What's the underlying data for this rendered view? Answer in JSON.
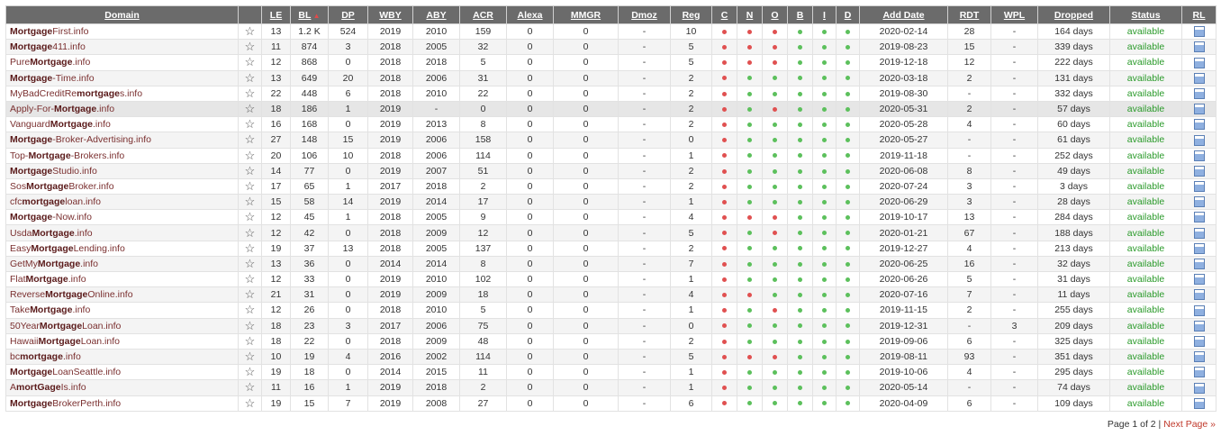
{
  "colors": {
    "red_dot": "#e05050",
    "green_dot": "#5cc05c",
    "available": "#2a9a2a",
    "header_bg": "#6b6b6b"
  },
  "icons": {
    "favorite": "star-outline-icon",
    "rl": "report-icon"
  },
  "columns": [
    "Domain",
    "",
    "LE",
    "BL",
    "DP",
    "WBY",
    "ABY",
    "ACR",
    "Alexa",
    "MMGR",
    "Dmoz",
    "Reg",
    "C",
    "N",
    "O",
    "B",
    "I",
    "D",
    "Add Date",
    "RDT",
    "WPL",
    "Dropped",
    "Status",
    "RL"
  ],
  "sorted_column": "BL",
  "rows": [
    {
      "pre": "",
      "bold": "Mortgage",
      "post": "First.info",
      "le": "13",
      "bl": "1.2 K",
      "dp": "524",
      "wby": "2019",
      "aby": "2010",
      "acr": "159",
      "alexa": "0",
      "mmgr": "0",
      "dmoz": "-",
      "reg": "10",
      "c": "r",
      "n": "r",
      "o": "r",
      "b": "g",
      "i": "g",
      "d": "g",
      "add": "2020-02-14",
      "rdt": "28",
      "wpl": "-",
      "dropped": "164 days",
      "status": "available"
    },
    {
      "pre": "",
      "bold": "Mortgage",
      "post": "411.info",
      "le": "11",
      "bl": "874",
      "dp": "3",
      "wby": "2018",
      "aby": "2005",
      "acr": "32",
      "alexa": "0",
      "mmgr": "0",
      "dmoz": "-",
      "reg": "5",
      "c": "r",
      "n": "r",
      "o": "r",
      "b": "g",
      "i": "g",
      "d": "g",
      "add": "2019-08-23",
      "rdt": "15",
      "wpl": "-",
      "dropped": "339 days",
      "status": "available"
    },
    {
      "pre": "Pure",
      "bold": "Mortgage",
      "post": ".info",
      "le": "12",
      "bl": "868",
      "dp": "0",
      "wby": "2018",
      "aby": "2018",
      "acr": "5",
      "alexa": "0",
      "mmgr": "0",
      "dmoz": "-",
      "reg": "5",
      "c": "r",
      "n": "r",
      "o": "r",
      "b": "g",
      "i": "g",
      "d": "g",
      "add": "2019-12-18",
      "rdt": "12",
      "wpl": "-",
      "dropped": "222 days",
      "status": "available"
    },
    {
      "pre": "",
      "bold": "Mortgage",
      "post": "-Time.info",
      "le": "13",
      "bl": "649",
      "dp": "20",
      "wby": "2018",
      "aby": "2006",
      "acr": "31",
      "alexa": "0",
      "mmgr": "0",
      "dmoz": "-",
      "reg": "2",
      "c": "r",
      "n": "g",
      "o": "g",
      "b": "g",
      "i": "g",
      "d": "g",
      "add": "2020-03-18",
      "rdt": "2",
      "wpl": "-",
      "dropped": "131 days",
      "status": "available"
    },
    {
      "pre": "MyBadCreditRe",
      "bold": "mortgage",
      "post": "s.info",
      "le": "22",
      "bl": "448",
      "dp": "6",
      "wby": "2018",
      "aby": "2010",
      "acr": "22",
      "alexa": "0",
      "mmgr": "0",
      "dmoz": "-",
      "reg": "2",
      "c": "r",
      "n": "g",
      "o": "g",
      "b": "g",
      "i": "g",
      "d": "g",
      "add": "2019-08-30",
      "rdt": "-",
      "wpl": "-",
      "dropped": "332 days",
      "status": "available"
    },
    {
      "pre": "Apply-For-",
      "bold": "Mortgage",
      "post": ".info",
      "le": "18",
      "bl": "186",
      "dp": "1",
      "wby": "2019",
      "aby": "-",
      "acr": "0",
      "alexa": "0",
      "mmgr": "0",
      "dmoz": "-",
      "reg": "2",
      "c": "r",
      "n": "g",
      "o": "r",
      "b": "g",
      "i": "g",
      "d": "g",
      "add": "2020-05-31",
      "rdt": "2",
      "wpl": "-",
      "dropped": "57 days",
      "status": "available"
    },
    {
      "pre": "Vanguard",
      "bold": "Mortgage",
      "post": ".info",
      "le": "16",
      "bl": "168",
      "dp": "0",
      "wby": "2019",
      "aby": "2013",
      "acr": "8",
      "alexa": "0",
      "mmgr": "0",
      "dmoz": "-",
      "reg": "2",
      "c": "r",
      "n": "g",
      "o": "g",
      "b": "g",
      "i": "g",
      "d": "g",
      "add": "2020-05-28",
      "rdt": "4",
      "wpl": "-",
      "dropped": "60 days",
      "status": "available"
    },
    {
      "pre": "",
      "bold": "Mortgage",
      "post": "-Broker-Advertising.info",
      "le": "27",
      "bl": "148",
      "dp": "15",
      "wby": "2019",
      "aby": "2006",
      "acr": "158",
      "alexa": "0",
      "mmgr": "0",
      "dmoz": "-",
      "reg": "0",
      "c": "r",
      "n": "g",
      "o": "g",
      "b": "g",
      "i": "g",
      "d": "g",
      "add": "2020-05-27",
      "rdt": "-",
      "wpl": "-",
      "dropped": "61 days",
      "status": "available"
    },
    {
      "pre": "Top-",
      "bold": "Mortgage",
      "post": "-Brokers.info",
      "le": "20",
      "bl": "106",
      "dp": "10",
      "wby": "2018",
      "aby": "2006",
      "acr": "114",
      "alexa": "0",
      "mmgr": "0",
      "dmoz": "-",
      "reg": "1",
      "c": "r",
      "n": "g",
      "o": "g",
      "b": "g",
      "i": "g",
      "d": "g",
      "add": "2019-11-18",
      "rdt": "-",
      "wpl": "-",
      "dropped": "252 days",
      "status": "available"
    },
    {
      "pre": "",
      "bold": "Mortgage",
      "post": "Studio.info",
      "le": "14",
      "bl": "77",
      "dp": "0",
      "wby": "2019",
      "aby": "2007",
      "acr": "51",
      "alexa": "0",
      "mmgr": "0",
      "dmoz": "-",
      "reg": "2",
      "c": "r",
      "n": "g",
      "o": "g",
      "b": "g",
      "i": "g",
      "d": "g",
      "add": "2020-06-08",
      "rdt": "8",
      "wpl": "-",
      "dropped": "49 days",
      "status": "available"
    },
    {
      "pre": "Sos",
      "bold": "Mortgage",
      "post": "Broker.info",
      "le": "17",
      "bl": "65",
      "dp": "1",
      "wby": "2017",
      "aby": "2018",
      "acr": "2",
      "alexa": "0",
      "mmgr": "0",
      "dmoz": "-",
      "reg": "2",
      "c": "r",
      "n": "g",
      "o": "g",
      "b": "g",
      "i": "g",
      "d": "g",
      "add": "2020-07-24",
      "rdt": "3",
      "wpl": "-",
      "dropped": "3 days",
      "status": "available"
    },
    {
      "pre": "cfc",
      "bold": "mortgage",
      "post": "loan.info",
      "le": "15",
      "bl": "58",
      "dp": "14",
      "wby": "2019",
      "aby": "2014",
      "acr": "17",
      "alexa": "0",
      "mmgr": "0",
      "dmoz": "-",
      "reg": "1",
      "c": "r",
      "n": "g",
      "o": "g",
      "b": "g",
      "i": "g",
      "d": "g",
      "add": "2020-06-29",
      "rdt": "3",
      "wpl": "-",
      "dropped": "28 days",
      "status": "available"
    },
    {
      "pre": "",
      "bold": "Mortgage",
      "post": "-Now.info",
      "le": "12",
      "bl": "45",
      "dp": "1",
      "wby": "2018",
      "aby": "2005",
      "acr": "9",
      "alexa": "0",
      "mmgr": "0",
      "dmoz": "-",
      "reg": "4",
      "c": "r",
      "n": "r",
      "o": "r",
      "b": "g",
      "i": "g",
      "d": "g",
      "add": "2019-10-17",
      "rdt": "13",
      "wpl": "-",
      "dropped": "284 days",
      "status": "available"
    },
    {
      "pre": "Usda",
      "bold": "Mortgage",
      "post": ".info",
      "le": "12",
      "bl": "42",
      "dp": "0",
      "wby": "2018",
      "aby": "2009",
      "acr": "12",
      "alexa": "0",
      "mmgr": "0",
      "dmoz": "-",
      "reg": "5",
      "c": "r",
      "n": "g",
      "o": "r",
      "b": "g",
      "i": "g",
      "d": "g",
      "add": "2020-01-21",
      "rdt": "67",
      "wpl": "-",
      "dropped": "188 days",
      "status": "available"
    },
    {
      "pre": "Easy",
      "bold": "Mortgage",
      "post": "Lending.info",
      "le": "19",
      "bl": "37",
      "dp": "13",
      "wby": "2018",
      "aby": "2005",
      "acr": "137",
      "alexa": "0",
      "mmgr": "0",
      "dmoz": "-",
      "reg": "2",
      "c": "r",
      "n": "g",
      "o": "g",
      "b": "g",
      "i": "g",
      "d": "g",
      "add": "2019-12-27",
      "rdt": "4",
      "wpl": "-",
      "dropped": "213 days",
      "status": "available"
    },
    {
      "pre": "GetMy",
      "bold": "Mortgage",
      "post": ".info",
      "le": "13",
      "bl": "36",
      "dp": "0",
      "wby": "2014",
      "aby": "2014",
      "acr": "8",
      "alexa": "0",
      "mmgr": "0",
      "dmoz": "-",
      "reg": "7",
      "c": "r",
      "n": "g",
      "o": "g",
      "b": "g",
      "i": "g",
      "d": "g",
      "add": "2020-06-25",
      "rdt": "16",
      "wpl": "-",
      "dropped": "32 days",
      "status": "available"
    },
    {
      "pre": "Flat",
      "bold": "Mortgage",
      "post": ".info",
      "le": "12",
      "bl": "33",
      "dp": "0",
      "wby": "2019",
      "aby": "2010",
      "acr": "102",
      "alexa": "0",
      "mmgr": "0",
      "dmoz": "-",
      "reg": "1",
      "c": "r",
      "n": "g",
      "o": "g",
      "b": "g",
      "i": "g",
      "d": "g",
      "add": "2020-06-26",
      "rdt": "5",
      "wpl": "-",
      "dropped": "31 days",
      "status": "available"
    },
    {
      "pre": "Reverse",
      "bold": "Mortgage",
      "post": "Online.info",
      "le": "21",
      "bl": "31",
      "dp": "0",
      "wby": "2019",
      "aby": "2009",
      "acr": "18",
      "alexa": "0",
      "mmgr": "0",
      "dmoz": "-",
      "reg": "4",
      "c": "r",
      "n": "r",
      "o": "g",
      "b": "g",
      "i": "g",
      "d": "g",
      "add": "2020-07-16",
      "rdt": "7",
      "wpl": "-",
      "dropped": "11 days",
      "status": "available"
    },
    {
      "pre": "Take",
      "bold": "Mortgage",
      "post": ".info",
      "le": "12",
      "bl": "26",
      "dp": "0",
      "wby": "2018",
      "aby": "2010",
      "acr": "5",
      "alexa": "0",
      "mmgr": "0",
      "dmoz": "-",
      "reg": "1",
      "c": "r",
      "n": "g",
      "o": "r",
      "b": "g",
      "i": "g",
      "d": "g",
      "add": "2019-11-15",
      "rdt": "2",
      "wpl": "-",
      "dropped": "255 days",
      "status": "available"
    },
    {
      "pre": "50Year",
      "bold": "Mortgage",
      "post": "Loan.info",
      "le": "18",
      "bl": "23",
      "dp": "3",
      "wby": "2017",
      "aby": "2006",
      "acr": "75",
      "alexa": "0",
      "mmgr": "0",
      "dmoz": "-",
      "reg": "0",
      "c": "r",
      "n": "g",
      "o": "g",
      "b": "g",
      "i": "g",
      "d": "g",
      "add": "2019-12-31",
      "rdt": "-",
      "wpl": "3",
      "dropped": "209 days",
      "status": "available"
    },
    {
      "pre": "Hawaii",
      "bold": "Mortgage",
      "post": "Loan.info",
      "le": "18",
      "bl": "22",
      "dp": "0",
      "wby": "2018",
      "aby": "2009",
      "acr": "48",
      "alexa": "0",
      "mmgr": "0",
      "dmoz": "-",
      "reg": "2",
      "c": "r",
      "n": "g",
      "o": "g",
      "b": "g",
      "i": "g",
      "d": "g",
      "add": "2019-09-06",
      "rdt": "6",
      "wpl": "-",
      "dropped": "325 days",
      "status": "available"
    },
    {
      "pre": "bc",
      "bold": "mortgage",
      "post": ".info",
      "le": "10",
      "bl": "19",
      "dp": "4",
      "wby": "2016",
      "aby": "2002",
      "acr": "114",
      "alexa": "0",
      "mmgr": "0",
      "dmoz": "-",
      "reg": "5",
      "c": "r",
      "n": "r",
      "o": "r",
      "b": "g",
      "i": "g",
      "d": "g",
      "add": "2019-08-11",
      "rdt": "93",
      "wpl": "-",
      "dropped": "351 days",
      "status": "available"
    },
    {
      "pre": "",
      "bold": "Mortgage",
      "post": "LoanSeattle.info",
      "le": "19",
      "bl": "18",
      "dp": "0",
      "wby": "2014",
      "aby": "2015",
      "acr": "11",
      "alexa": "0",
      "mmgr": "0",
      "dmoz": "-",
      "reg": "1",
      "c": "r",
      "n": "g",
      "o": "g",
      "b": "g",
      "i": "g",
      "d": "g",
      "add": "2019-10-06",
      "rdt": "4",
      "wpl": "-",
      "dropped": "295 days",
      "status": "available"
    },
    {
      "pre": "A",
      "bold": "mortGage",
      "post": "Is.info",
      "le": "11",
      "bl": "16",
      "dp": "1",
      "wby": "2019",
      "aby": "2018",
      "acr": "2",
      "alexa": "0",
      "mmgr": "0",
      "dmoz": "-",
      "reg": "1",
      "c": "r",
      "n": "g",
      "o": "g",
      "b": "g",
      "i": "g",
      "d": "g",
      "add": "2020-05-14",
      "rdt": "-",
      "wpl": "-",
      "dropped": "74 days",
      "status": "available"
    },
    {
      "pre": "",
      "bold": "Mortgage",
      "post": "BrokerPerth.info",
      "le": "19",
      "bl": "15",
      "dp": "7",
      "wby": "2019",
      "aby": "2008",
      "acr": "27",
      "alexa": "0",
      "mmgr": "0",
      "dmoz": "-",
      "reg": "6",
      "c": "r",
      "n": "g",
      "o": "g",
      "b": "g",
      "i": "g",
      "d": "g",
      "add": "2020-04-09",
      "rdt": "6",
      "wpl": "-",
      "dropped": "109 days",
      "status": "available"
    }
  ],
  "pager": {
    "text": "Page 1 of 2",
    "separator": "|",
    "next": "Next Page »"
  }
}
